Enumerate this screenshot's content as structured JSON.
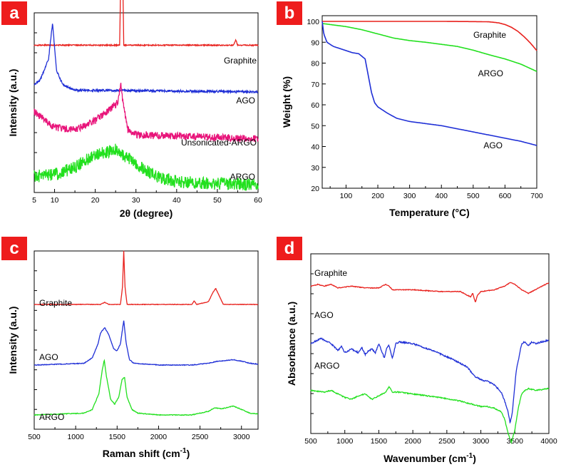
{
  "colors": {
    "red": "#e8201c",
    "blue": "#1f2fd6",
    "pink": "#e8147a",
    "green": "#22e01e",
    "axis": "#000000",
    "badge": "#ee1c1c"
  },
  "chart_data": [
    {
      "id": "a",
      "badge": "a",
      "type": "line",
      "title": "",
      "xlabel": "2θ (degree)",
      "ylabel": "Intensity (a.u.)",
      "xlim": [
        5,
        60
      ],
      "xticks": [
        10,
        20,
        30,
        40,
        50,
        60
      ],
      "xtick_labels": [
        "10",
        "20",
        "30",
        "40",
        "50",
        "60"
      ],
      "series": [
        {
          "name": "Graphite",
          "color": "red",
          "offset": 0.82,
          "x": [
            5,
            26.0,
            26.5,
            27.0,
            54.0,
            54.5,
            55.0,
            60
          ],
          "y": [
            0,
            0,
            0.78,
            0,
            0,
            0.03,
            0,
            0
          ]
        },
        {
          "name": "AGO",
          "color": "blue",
          "offset": 0.56,
          "x": [
            5,
            6.5,
            8.5,
            9.5,
            10.5,
            12,
            15,
            60
          ],
          "y": [
            0.04,
            0.07,
            0.18,
            0.38,
            0.12,
            0.04,
            0.01,
            0
          ]
        },
        {
          "name": "Unsonicated-ARGO",
          "color": "pink",
          "offset": 0.3,
          "x": [
            5,
            10,
            15,
            20,
            24,
            25.5,
            26.3,
            26.8,
            28,
            30,
            60
          ],
          "y": [
            0.15,
            0.06,
            0.05,
            0.1,
            0.17,
            0.2,
            0.3,
            0.2,
            0.05,
            0.02,
            0
          ]
        },
        {
          "name": "ARGO",
          "color": "green",
          "offset": 0.04,
          "x": [
            5,
            10,
            15,
            20,
            25,
            30,
            35,
            40,
            60
          ],
          "y": [
            0.05,
            0.06,
            0.1,
            0.17,
            0.2,
            0.12,
            0.05,
            0.02,
            0
          ]
        }
      ],
      "labels": [
        "Graphite",
        "AGO",
        "Unsonicated-ARGO",
        "ARGO"
      ]
    },
    {
      "id": "b",
      "badge": "b",
      "type": "line",
      "title": "",
      "xlabel": "Temperature (°C)",
      "ylabel": "Weight (%)",
      "xlim": [
        25,
        700
      ],
      "ylim": [
        20,
        100
      ],
      "xticks": [
        100,
        200,
        300,
        400,
        500,
        600,
        700
      ],
      "xtick_labels": [
        "100",
        "200",
        "300",
        "400",
        "500",
        "600",
        "700"
      ],
      "yticks": [
        20,
        30,
        40,
        50,
        60,
        70,
        80,
        90,
        100
      ],
      "ytick_labels": [
        "20",
        "30",
        "40",
        "50",
        "60",
        "70",
        "80",
        "90",
        "100"
      ],
      "series": [
        {
          "name": "Graphite",
          "color": "red",
          "x": [
            25,
            100,
            200,
            300,
            400,
            500,
            550,
            580,
            600,
            620,
            640,
            660,
            680,
            700
          ],
          "y": [
            100,
            100,
            100,
            100,
            100,
            99.9,
            99.8,
            99.3,
            98.5,
            97.2,
            95.3,
            92.7,
            89.6,
            86
          ]
        },
        {
          "name": "ARGO",
          "color": "green",
          "x": [
            25,
            60,
            100,
            150,
            200,
            250,
            300,
            350,
            400,
            450,
            500,
            550,
            600,
            650,
            700
          ],
          "y": [
            99,
            98.3,
            97.5,
            96,
            94,
            92,
            90.8,
            90,
            89,
            88,
            86.2,
            84,
            82,
            79.5,
            76
          ]
        },
        {
          "name": "AGO",
          "color": "blue",
          "x": [
            25,
            30,
            40,
            60,
            80,
            100,
            120,
            140,
            160,
            170,
            180,
            190,
            200,
            230,
            260,
            300,
            350,
            400,
            450,
            500,
            550,
            600,
            650,
            700
          ],
          "y": [
            100,
            94,
            90,
            88,
            87,
            86,
            85,
            84.5,
            82,
            74,
            66,
            61,
            59,
            56,
            53.5,
            52,
            51,
            50,
            48.5,
            47,
            45.5,
            44,
            42.5,
            40.5
          ]
        }
      ],
      "labels": [
        "Graphite",
        "ARGO",
        "AGO"
      ]
    },
    {
      "id": "c",
      "badge": "c",
      "type": "line",
      "title": "",
      "xlabel": "Raman shift (cm-1)",
      "ylabel": "Intensity (a.u.)",
      "xlim": [
        500,
        3200
      ],
      "xticks": [
        500,
        1000,
        1500,
        2000,
        2500,
        3000
      ],
      "xtick_labels": [
        "500",
        "1000",
        "1500",
        "2000",
        "2500",
        "3000"
      ],
      "series": [
        {
          "name": "Graphite",
          "color": "red",
          "offset": 0.7,
          "x": [
            500,
            1300,
            1350,
            1400,
            1540,
            1565,
            1580,
            1595,
            1620,
            2400,
            2430,
            2460,
            2600,
            2660,
            2690,
            2720,
            2780,
            3200
          ],
          "y": [
            0,
            0,
            0.012,
            0,
            0,
            0.1,
            0.3,
            0.1,
            0,
            0,
            0.02,
            0,
            0.015,
            0.07,
            0.09,
            0.06,
            0,
            0
          ]
        },
        {
          "name": "AGO",
          "color": "blue",
          "offset": 0.36,
          "x": [
            500,
            1100,
            1200,
            1270,
            1300,
            1350,
            1400,
            1460,
            1500,
            1540,
            1580,
            1610,
            1650,
            1700,
            2000,
            2400,
            2600,
            2700,
            2800,
            2900,
            3000,
            3100,
            3200
          ],
          "y": [
            0,
            0.01,
            0.04,
            0.12,
            0.18,
            0.21,
            0.17,
            0.09,
            0.08,
            0.12,
            0.25,
            0.12,
            0.03,
            0.01,
            0,
            0,
            0.01,
            0.02,
            0.025,
            0.03,
            0.022,
            0.01,
            0.005
          ]
        },
        {
          "name": "ARGO",
          "color": "green",
          "offset": 0.08,
          "x": [
            500,
            1100,
            1200,
            1280,
            1320,
            1345,
            1370,
            1420,
            1470,
            1520,
            1560,
            1590,
            1620,
            1680,
            1750,
            2000,
            2400,
            2600,
            2680,
            2750,
            2820,
            2900,
            2980,
            3100,
            3200
          ],
          "y": [
            0,
            0.01,
            0.03,
            0.12,
            0.25,
            0.31,
            0.22,
            0.09,
            0.06,
            0.1,
            0.2,
            0.21,
            0.1,
            0.03,
            0.01,
            0,
            0,
            0.02,
            0.04,
            0.035,
            0.04,
            0.05,
            0.035,
            0.01,
            0.005
          ]
        }
      ],
      "labels": [
        "Graphite",
        "AGO",
        "ARGO"
      ]
    },
    {
      "id": "d",
      "badge": "d",
      "type": "line",
      "title": "",
      "xlabel": "Wavenumber (cm-1)",
      "ylabel": "Absorbance (a.u.)",
      "xlim": [
        500,
        4000
      ],
      "xticks": [
        500,
        1000,
        1500,
        2000,
        2500,
        3000,
        3500,
        4000
      ],
      "xtick_labels": [
        "500",
        "1000",
        "1500",
        "2000",
        "2500",
        "3000",
        "3500",
        "4000"
      ],
      "series": [
        {
          "name": "Graphite",
          "color": "red",
          "offset": 0.8,
          "x": [
            500,
            600,
            700,
            800,
            900,
            1100,
            1300,
            1500,
            1600,
            1650,
            1700,
            1800,
            2000,
            2400,
            2700,
            2850,
            2880,
            2920,
            2950,
            3000,
            3200,
            3350,
            3430,
            3500,
            3600,
            3700,
            3800,
            4000
          ],
          "y": [
            0.02,
            0.03,
            0.02,
            0.03,
            0.01,
            0.02,
            0.01,
            0.01,
            0.03,
            0.02,
            0.0,
            0.0,
            0.0,
            -0.01,
            -0.01,
            -0.04,
            -0.02,
            -0.07,
            -0.03,
            -0.01,
            0.0,
            0.02,
            0.04,
            0.03,
            0.0,
            -0.02,
            0.0,
            0.04
          ]
        },
        {
          "name": "AGO",
          "color": "blue",
          "offset": 0.5,
          "x": [
            500,
            650,
            800,
            900,
            950,
            1000,
            1100,
            1200,
            1250,
            1300,
            1350,
            1400,
            1450,
            1500,
            1550,
            1580,
            1620,
            1650,
            1700,
            1750,
            1800,
            2000,
            2300,
            2600,
            2800,
            2900,
            3000,
            3100,
            3200,
            3300,
            3350,
            3400,
            3430,
            3460,
            3520,
            3600,
            3650,
            3700,
            3750,
            3800,
            4000
          ],
          "y": [
            0.0,
            0.03,
            0.0,
            -0.04,
            -0.01,
            -0.05,
            -0.03,
            -0.05,
            -0.02,
            -0.06,
            -0.04,
            -0.03,
            -0.05,
            0.0,
            -0.05,
            -0.08,
            -0.02,
            -0.01,
            -0.08,
            0.0,
            0.01,
            0.0,
            -0.04,
            -0.09,
            -0.13,
            -0.18,
            -0.2,
            -0.21,
            -0.23,
            -0.27,
            -0.32,
            -0.38,
            -0.44,
            -0.39,
            -0.15,
            0.0,
            0.01,
            -0.01,
            0.01,
            0.0,
            0.02
          ]
        },
        {
          "name": "ARGO",
          "color": "green",
          "offset": 0.24,
          "x": [
            500,
            700,
            800,
            900,
            1000,
            1100,
            1200,
            1300,
            1400,
            1500,
            1600,
            1650,
            1700,
            1800,
            2000,
            2400,
            2700,
            2900,
            3000,
            3100,
            3200,
            3300,
            3350,
            3400,
            3450,
            3500,
            3550,
            3600,
            3650,
            3700,
            3800,
            4000
          ],
          "y": [
            0.0,
            -0.01,
            0.0,
            -0.02,
            -0.04,
            -0.05,
            -0.03,
            -0.02,
            -0.05,
            -0.03,
            -0.01,
            0.02,
            -0.01,
            -0.01,
            -0.02,
            -0.04,
            -0.06,
            -0.08,
            -0.09,
            -0.09,
            -0.1,
            -0.12,
            -0.16,
            -0.24,
            -0.29,
            -0.22,
            -0.1,
            -0.02,
            0.0,
            0.01,
            0.0,
            0.01
          ]
        }
      ],
      "labels": [
        "Graphite",
        "AGO",
        "ARGO"
      ]
    }
  ]
}
